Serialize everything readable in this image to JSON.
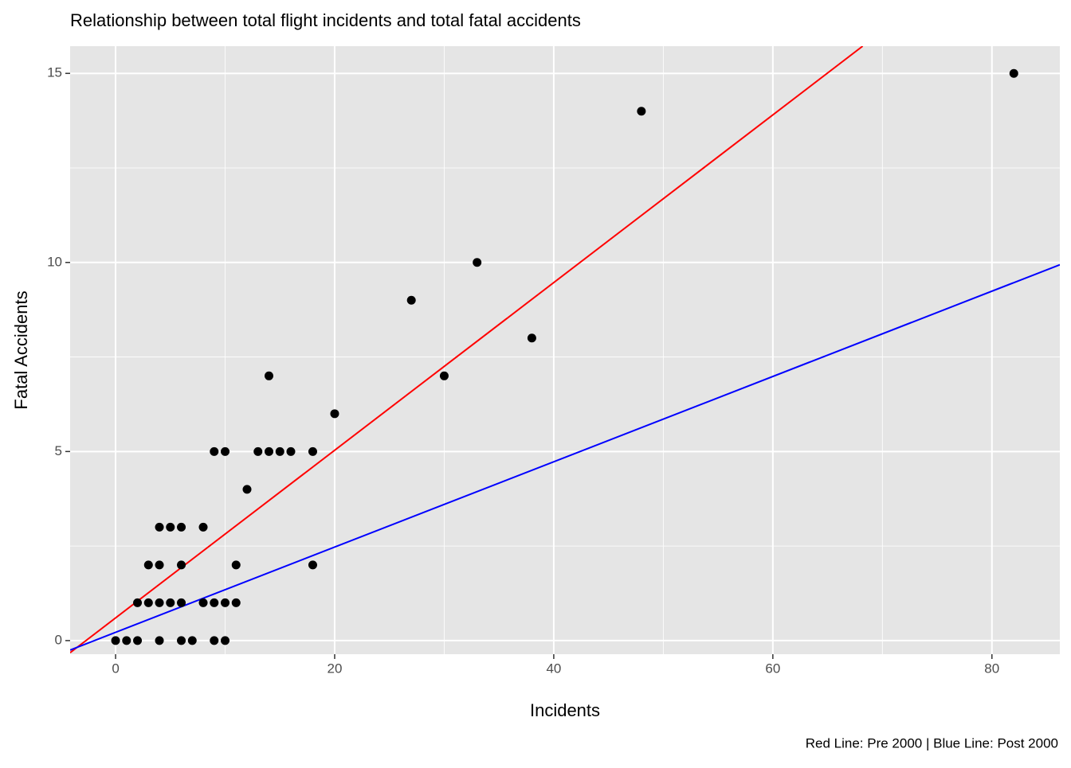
{
  "chart_data": {
    "type": "scatter",
    "title": "Relationship between total flight incidents and total fatal accidents",
    "x_label": "Incidents",
    "y_label": "Fatal Accidents",
    "caption": "Red Line: Pre 2000 | Blue Line: Post 2000",
    "x": [
      0,
      1,
      2,
      4,
      6,
      7,
      9,
      10,
      2,
      3,
      4,
      5,
      6,
      8,
      9,
      10,
      11,
      3,
      4,
      6,
      11,
      18,
      4,
      5,
      6,
      8,
      12,
      9,
      10,
      13,
      14,
      15,
      16,
      18,
      20,
      14,
      30,
      38,
      27,
      33,
      48,
      82
    ],
    "values": [
      0,
      0,
      0,
      0,
      0,
      0,
      0,
      0,
      1,
      1,
      1,
      1,
      1,
      1,
      1,
      1,
      1,
      2,
      2,
      2,
      2,
      2,
      3,
      3,
      3,
      3,
      4,
      5,
      5,
      5,
      5,
      5,
      5,
      5,
      6,
      7,
      7,
      8,
      9,
      10,
      14,
      15
    ],
    "color": "#000000",
    "lines": [
      {
        "color": "#ff0000",
        "x": [
          -4.15,
          68.2
        ],
        "values": [
          -0.32,
          15.72
        ]
      },
      {
        "color": "#0000ff",
        "x": [
          -4.15,
          86.2
        ],
        "values": [
          -0.25,
          9.94
        ]
      }
    ],
    "xlim": [
      -4.15,
      86.2
    ],
    "ylim": [
      -0.36,
      15.72
    ],
    "xticks": [
      0,
      20,
      40,
      60,
      80
    ],
    "yticks": [
      0,
      5,
      10,
      15
    ],
    "grid": true
  }
}
